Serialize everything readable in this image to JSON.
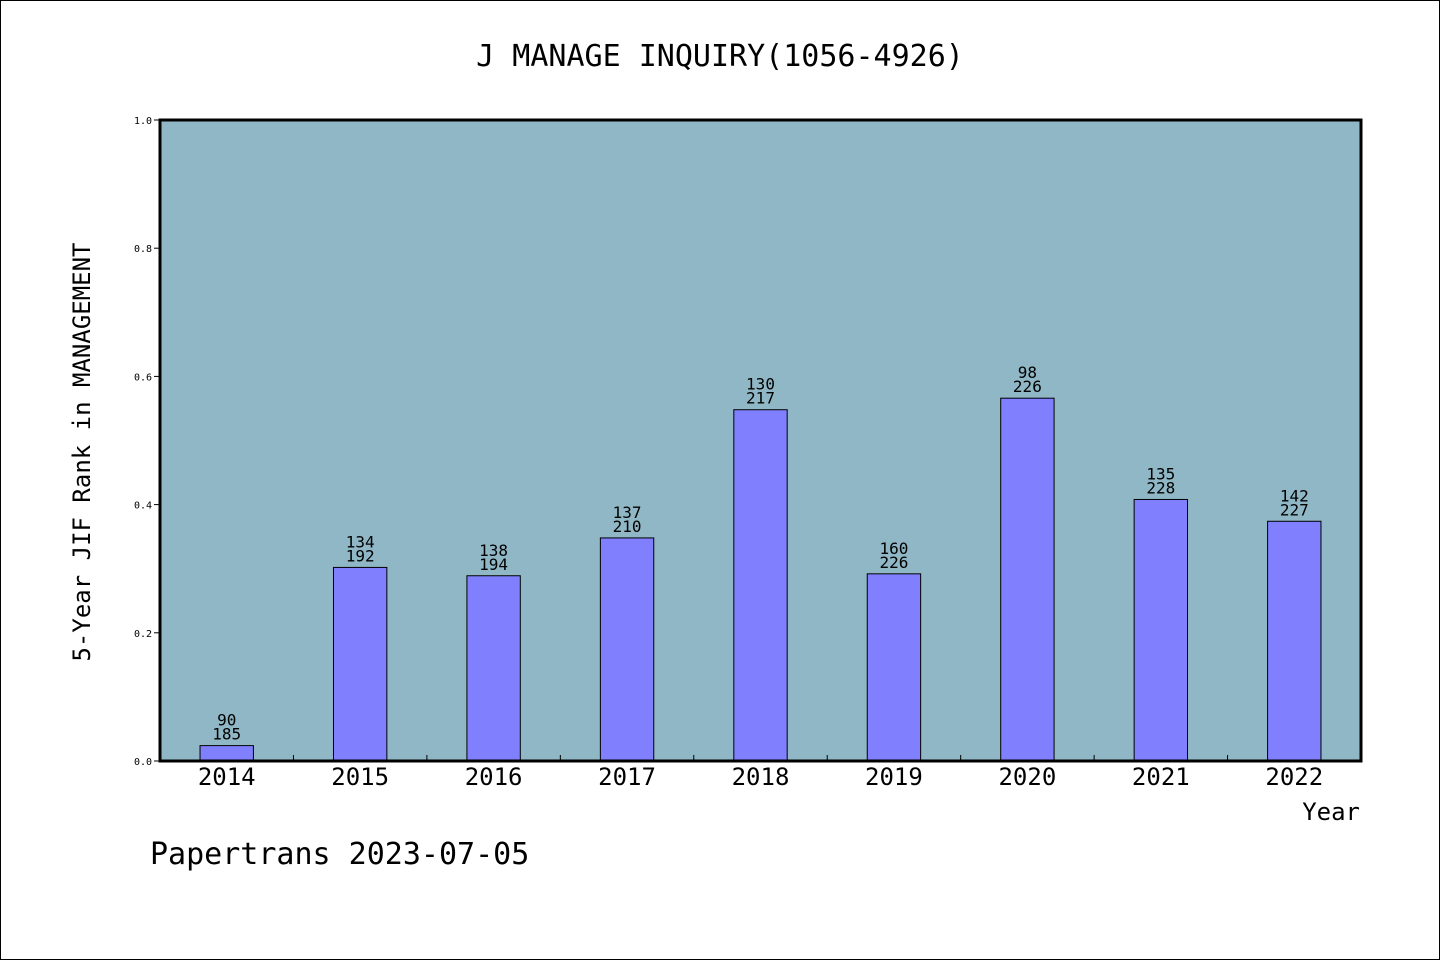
{
  "chart_data": {
    "type": "bar",
    "title": "J MANAGE INQUIRY(1056-4926)",
    "xlabel": "Year",
    "ylabel": "5-Year JIF Rank in MANAGEMENT",
    "ylim": [
      0,
      1.0
    ],
    "yticks": [
      "0.0",
      "0.2",
      "0.4",
      "0.6",
      "0.8",
      "1.0"
    ],
    "categories": [
      "2014",
      "2015",
      "2016",
      "2017",
      "2018",
      "2019",
      "2020",
      "2021",
      "2022"
    ],
    "values": [
      0.024,
      0.302,
      0.289,
      0.348,
      0.548,
      0.292,
      0.566,
      0.408,
      0.374
    ],
    "ranks": [
      "90",
      "134",
      "138",
      "137",
      "130",
      "160",
      "98",
      "135",
      "142"
    ],
    "totals": [
      "185",
      "192",
      "194",
      "210",
      "217",
      "226",
      "226",
      "228",
      "227"
    ],
    "grid": false,
    "colors": {
      "plot_bg": "#8fb7c5",
      "bar": "#8080ff",
      "bar_edge": "#000000"
    }
  },
  "footer": "Papertrans 2023-07-05"
}
